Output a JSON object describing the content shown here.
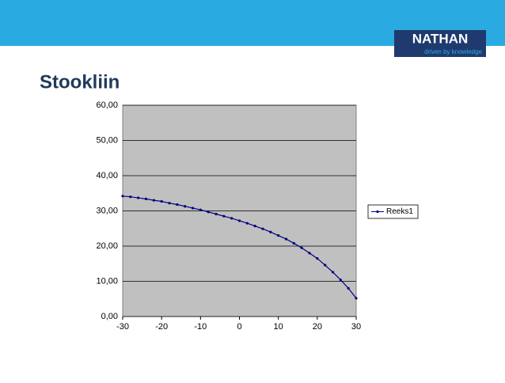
{
  "logo": {
    "name": "NATHAN",
    "tagline": "driven by knowledge"
  },
  "chart_data": {
    "type": "line",
    "title": "Stookliin",
    "x": [
      -30,
      -28,
      -26,
      -24,
      -22,
      -20,
      -18,
      -16,
      -14,
      -12,
      -10,
      -8,
      -6,
      -4,
      -2,
      0,
      2,
      4,
      6,
      8,
      10,
      12,
      14,
      16,
      18,
      20,
      22,
      24,
      26,
      28,
      30
    ],
    "series": [
      {
        "name": "Reeks1",
        "color": "#000080",
        "values": [
          34.2,
          34.0,
          33.7,
          33.4,
          33.0,
          32.7,
          32.2,
          31.8,
          31.3,
          30.8,
          30.3,
          29.7,
          29.1,
          28.5,
          27.9,
          27.2,
          26.5,
          25.7,
          24.9,
          24.0,
          23.0,
          22.0,
          20.8,
          19.5,
          18.0,
          16.5,
          14.6,
          12.6,
          10.4,
          8.0,
          5.2
        ]
      }
    ],
    "xlim": [
      -30,
      30
    ],
    "xticks": [
      -30,
      -20,
      -10,
      0,
      10,
      20,
      30
    ],
    "ylim": [
      0,
      60
    ],
    "yticks": [
      {
        "value": 0,
        "label": "0,00"
      },
      {
        "value": 10,
        "label": "10,00"
      },
      {
        "value": 20,
        "label": "20,00"
      },
      {
        "value": 30,
        "label": "30,00"
      },
      {
        "value": 40,
        "label": "40,00"
      },
      {
        "value": 50,
        "label": "50,00"
      },
      {
        "value": 60,
        "label": "60,00"
      }
    ],
    "grid": true,
    "plot_background": "#c0c0c0",
    "legend": "right"
  }
}
